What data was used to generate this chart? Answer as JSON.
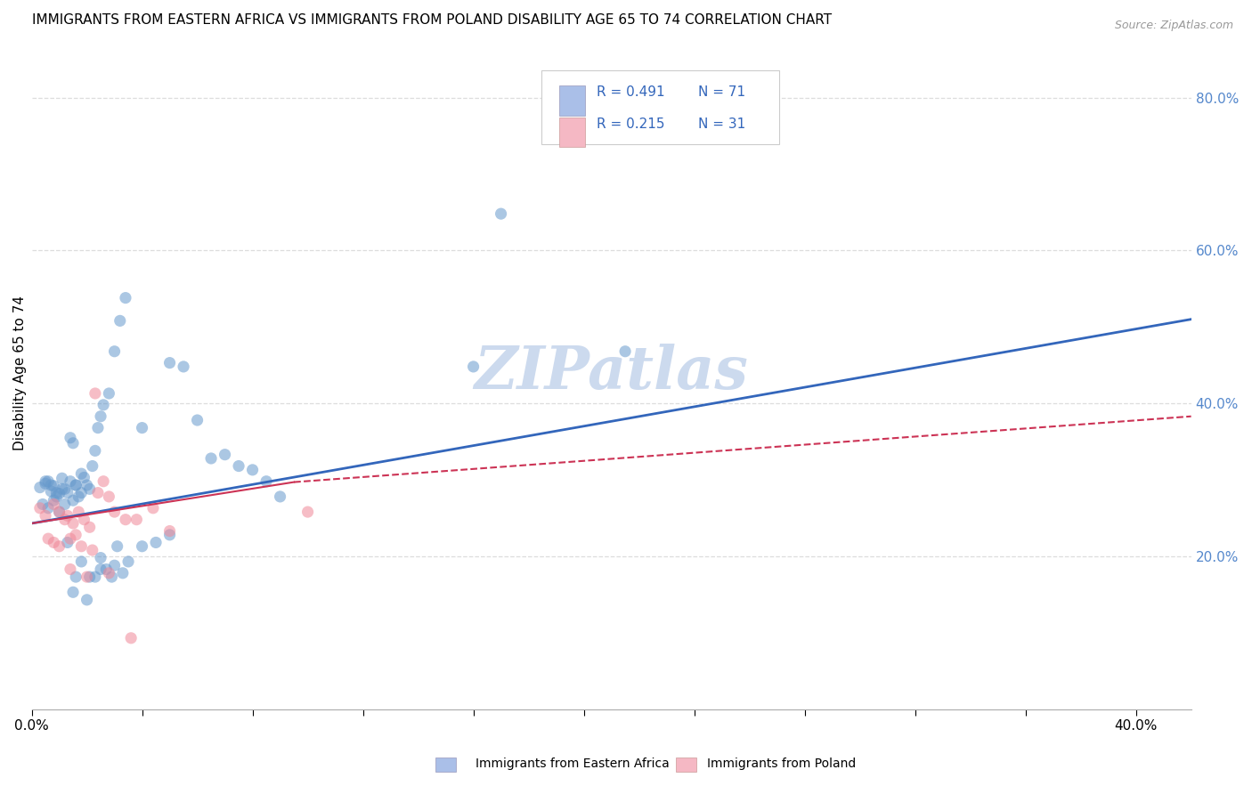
{
  "title": "IMMIGRANTS FROM EASTERN AFRICA VS IMMIGRANTS FROM POLAND DISABILITY AGE 65 TO 74 CORRELATION CHART",
  "source": "Source: ZipAtlas.com",
  "ylabel": "Disability Age 65 to 74",
  "right_yticks": [
    "80.0%",
    "60.0%",
    "40.0%",
    "20.0%"
  ],
  "right_ytick_vals": [
    0.8,
    0.6,
    0.4,
    0.2
  ],
  "xlim": [
    0.0,
    0.42
  ],
  "ylim": [
    0.0,
    0.88
  ],
  "legend_r1": "R = 0.491",
  "legend_n1": "N = 71",
  "legend_r2": "R = 0.215",
  "legend_n2": "N = 31",
  "legend_color1": "#aabfe8",
  "legend_color2": "#f5b8c4",
  "watermark": "ZIPatlas",
  "blue_color": "#6699cc",
  "pink_color": "#f08898",
  "blue_scatter": [
    [
      0.003,
      0.29
    ],
    [
      0.005,
      0.295
    ],
    [
      0.006,
      0.298
    ],
    [
      0.007,
      0.285
    ],
    [
      0.008,
      0.292
    ],
    [
      0.009,
      0.278
    ],
    [
      0.01,
      0.282
    ],
    [
      0.011,
      0.302
    ],
    [
      0.012,
      0.288
    ],
    [
      0.013,
      0.283
    ],
    [
      0.014,
      0.298
    ],
    [
      0.015,
      0.273
    ],
    [
      0.016,
      0.293
    ],
    [
      0.017,
      0.278
    ],
    [
      0.018,
      0.283
    ],
    [
      0.004,
      0.268
    ],
    [
      0.006,
      0.263
    ],
    [
      0.008,
      0.273
    ],
    [
      0.01,
      0.258
    ],
    [
      0.012,
      0.268
    ],
    [
      0.014,
      0.355
    ],
    [
      0.015,
      0.348
    ],
    [
      0.016,
      0.293
    ],
    [
      0.018,
      0.308
    ],
    [
      0.019,
      0.303
    ],
    [
      0.02,
      0.293
    ],
    [
      0.021,
      0.288
    ],
    [
      0.022,
      0.318
    ],
    [
      0.023,
      0.338
    ],
    [
      0.024,
      0.368
    ],
    [
      0.025,
      0.383
    ],
    [
      0.026,
      0.398
    ],
    [
      0.028,
      0.413
    ],
    [
      0.03,
      0.468
    ],
    [
      0.032,
      0.508
    ],
    [
      0.034,
      0.538
    ],
    [
      0.005,
      0.298
    ],
    [
      0.007,
      0.293
    ],
    [
      0.009,
      0.283
    ],
    [
      0.011,
      0.288
    ],
    [
      0.013,
      0.218
    ],
    [
      0.016,
      0.173
    ],
    [
      0.018,
      0.193
    ],
    [
      0.021,
      0.173
    ],
    [
      0.023,
      0.173
    ],
    [
      0.025,
      0.183
    ],
    [
      0.027,
      0.183
    ],
    [
      0.029,
      0.173
    ],
    [
      0.031,
      0.213
    ],
    [
      0.033,
      0.178
    ],
    [
      0.04,
      0.368
    ],
    [
      0.05,
      0.453
    ],
    [
      0.055,
      0.448
    ],
    [
      0.06,
      0.378
    ],
    [
      0.065,
      0.328
    ],
    [
      0.07,
      0.333
    ],
    [
      0.075,
      0.318
    ],
    [
      0.08,
      0.313
    ],
    [
      0.085,
      0.298
    ],
    [
      0.09,
      0.278
    ],
    [
      0.015,
      0.153
    ],
    [
      0.02,
      0.143
    ],
    [
      0.025,
      0.198
    ],
    [
      0.03,
      0.188
    ],
    [
      0.035,
      0.193
    ],
    [
      0.04,
      0.213
    ],
    [
      0.045,
      0.218
    ],
    [
      0.05,
      0.228
    ],
    [
      0.16,
      0.448
    ],
    [
      0.17,
      0.648
    ],
    [
      0.215,
      0.468
    ]
  ],
  "pink_scatter": [
    [
      0.003,
      0.263
    ],
    [
      0.005,
      0.253
    ],
    [
      0.008,
      0.268
    ],
    [
      0.01,
      0.258
    ],
    [
      0.012,
      0.248
    ],
    [
      0.013,
      0.253
    ],
    [
      0.015,
      0.243
    ],
    [
      0.017,
      0.258
    ],
    [
      0.019,
      0.248
    ],
    [
      0.021,
      0.238
    ],
    [
      0.006,
      0.223
    ],
    [
      0.008,
      0.218
    ],
    [
      0.01,
      0.213
    ],
    [
      0.014,
      0.223
    ],
    [
      0.016,
      0.228
    ],
    [
      0.018,
      0.213
    ],
    [
      0.022,
      0.208
    ],
    [
      0.024,
      0.283
    ],
    [
      0.026,
      0.298
    ],
    [
      0.028,
      0.278
    ],
    [
      0.03,
      0.258
    ],
    [
      0.034,
      0.248
    ],
    [
      0.038,
      0.248
    ],
    [
      0.044,
      0.263
    ],
    [
      0.05,
      0.233
    ],
    [
      0.023,
      0.413
    ],
    [
      0.014,
      0.183
    ],
    [
      0.02,
      0.173
    ],
    [
      0.028,
      0.178
    ],
    [
      0.036,
      0.093
    ],
    [
      0.1,
      0.258
    ]
  ],
  "blue_line": [
    [
      0.0,
      0.243
    ],
    [
      0.42,
      0.51
    ]
  ],
  "pink_line_solid": [
    [
      0.0,
      0.243
    ],
    [
      0.095,
      0.297
    ]
  ],
  "pink_line_dashed": [
    [
      0.095,
      0.297
    ],
    [
      0.42,
      0.383
    ]
  ],
  "grid_color": "#dddddd",
  "background_color": "#ffffff",
  "title_fontsize": 11,
  "axis_label_fontsize": 11,
  "tick_fontsize": 11,
  "legend_fontsize": 12,
  "watermark_fontsize": 48,
  "watermark_color": "#ccdaee",
  "scatter_size": 90,
  "scatter_alpha": 0.55,
  "bottom_legend1": "Immigrants from Eastern Africa",
  "bottom_legend2": "Immigrants from Poland"
}
